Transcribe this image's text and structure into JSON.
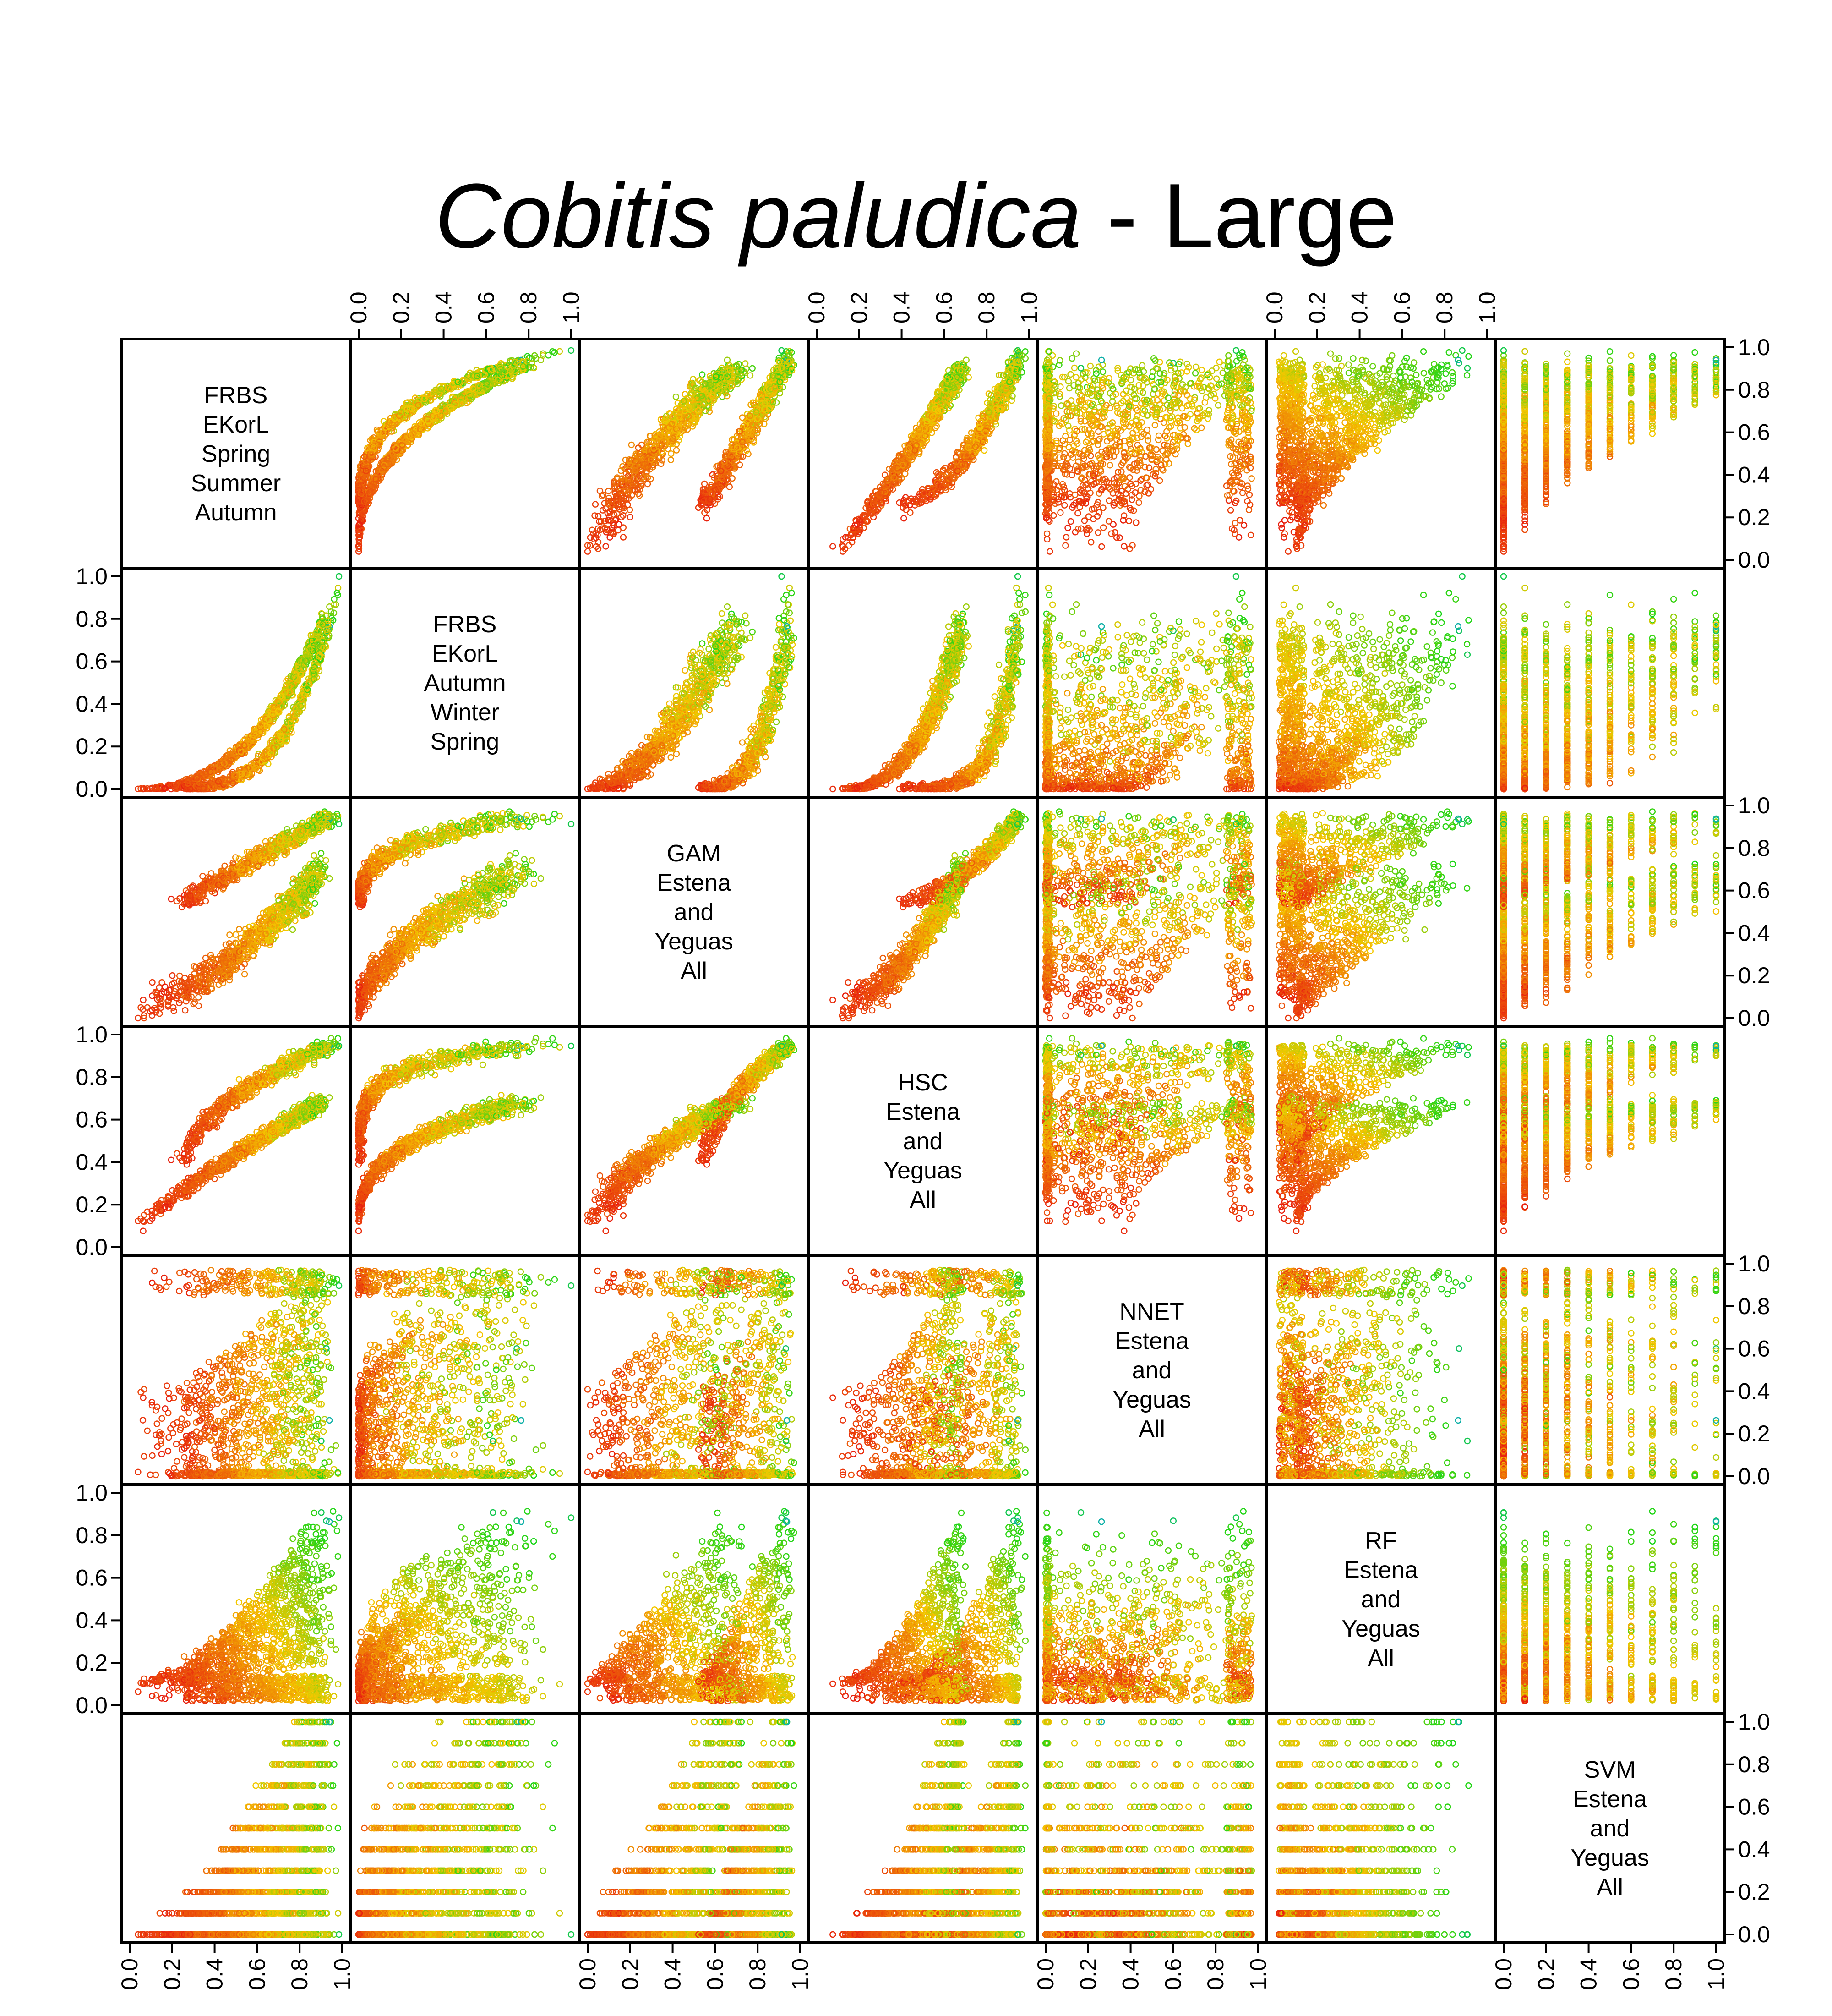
{
  "chart_data": {
    "type": "scatter",
    "title": {
      "italic": "Cobitis paludica",
      "rest": " - Large"
    },
    "variables": [
      {
        "label_lines": [
          "FRBS",
          "EKorL",
          "Spring",
          "Summer",
          "Autumn"
        ]
      },
      {
        "label_lines": [
          "FRBS",
          "EKorL",
          "Autumn",
          "Winter",
          "Spring"
        ]
      },
      {
        "label_lines": [
          "GAM",
          "Estena",
          "and",
          "Yeguas",
          "All"
        ]
      },
      {
        "label_lines": [
          "HSC",
          "Estena",
          "and",
          "Yeguas",
          "All"
        ]
      },
      {
        "label_lines": [
          "NNET",
          "Estena",
          "and",
          "Yeguas",
          "All"
        ]
      },
      {
        "label_lines": [
          "RF",
          "Estena",
          "and",
          "Yeguas",
          "All"
        ]
      },
      {
        "label_lines": [
          "SVM",
          "Estena",
          "and",
          "Yeguas",
          "All"
        ]
      }
    ],
    "axis_range": [
      0,
      1
    ],
    "ticks": [
      "0.0",
      "0.2",
      "0.4",
      "0.6",
      "0.8",
      "1.0"
    ],
    "tick_values": [
      0,
      0.2,
      0.4,
      0.6,
      0.8,
      1.0
    ],
    "layout_note": "7x7 scatterplot matrix; axes alternate on top/bottom and left/right edges",
    "top_axis_columns": [
      1,
      3,
      5
    ],
    "bottom_axis_columns": [
      0,
      2,
      4,
      6
    ],
    "left_axis_rows": [
      1,
      3,
      5
    ],
    "right_axis_rows": [
      0,
      2,
      4,
      6
    ],
    "color_scale": {
      "low": "#e8200f",
      "mid": "#f4c800",
      "high": "#18d618",
      "top": "#10b0a8"
    },
    "points_per_panel_approx": 1500,
    "grid": false,
    "legend": "none"
  }
}
